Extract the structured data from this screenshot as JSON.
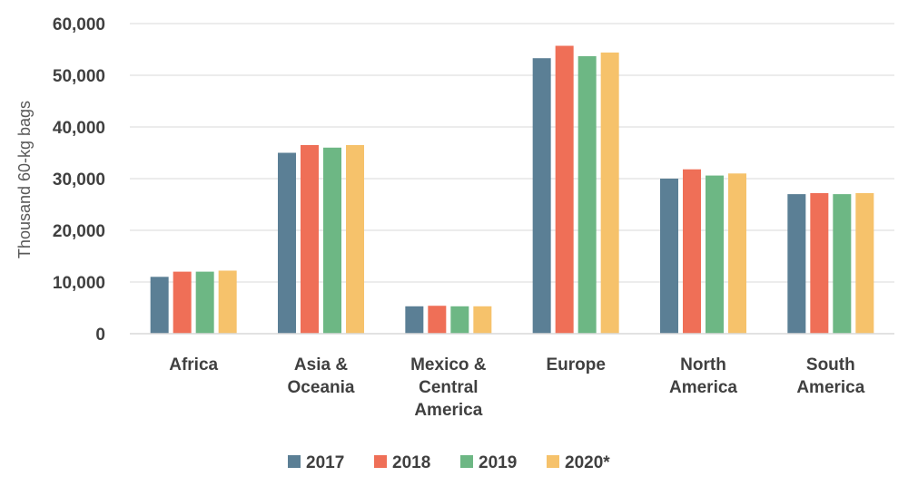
{
  "chart_data": {
    "type": "bar",
    "title": "",
    "xlabel": "",
    "ylabel": "Thousand 60-kg bags",
    "ylim": [
      0,
      60000
    ],
    "yticks": [
      0,
      10000,
      20000,
      30000,
      40000,
      50000,
      60000
    ],
    "ytick_labels": [
      "0",
      "10,000",
      "20,000",
      "30,000",
      "40,000",
      "50,000",
      "60,000"
    ],
    "categories": [
      [
        "Africa"
      ],
      [
        "Asia &",
        "Oceania"
      ],
      [
        "Mexico &",
        "Central",
        "America"
      ],
      [
        "Europe"
      ],
      [
        "North",
        "America"
      ],
      [
        "South",
        "America"
      ]
    ],
    "series": [
      {
        "name": "2017",
        "color": "#5b7f95",
        "values": [
          11000,
          35000,
          5300,
          53300,
          30000,
          27000
        ]
      },
      {
        "name": "2018",
        "color": "#ef6f57",
        "values": [
          12000,
          36500,
          5400,
          55700,
          31800,
          27200
        ]
      },
      {
        "name": "2019",
        "color": "#6db784",
        "values": [
          12000,
          36000,
          5300,
          53700,
          30600,
          27000
        ]
      },
      {
        "name": "2020*",
        "color": "#f6c26b",
        "values": [
          12200,
          36500,
          5300,
          54400,
          31000,
          27200
        ]
      }
    ],
    "grid": true,
    "legend": "bottom"
  }
}
